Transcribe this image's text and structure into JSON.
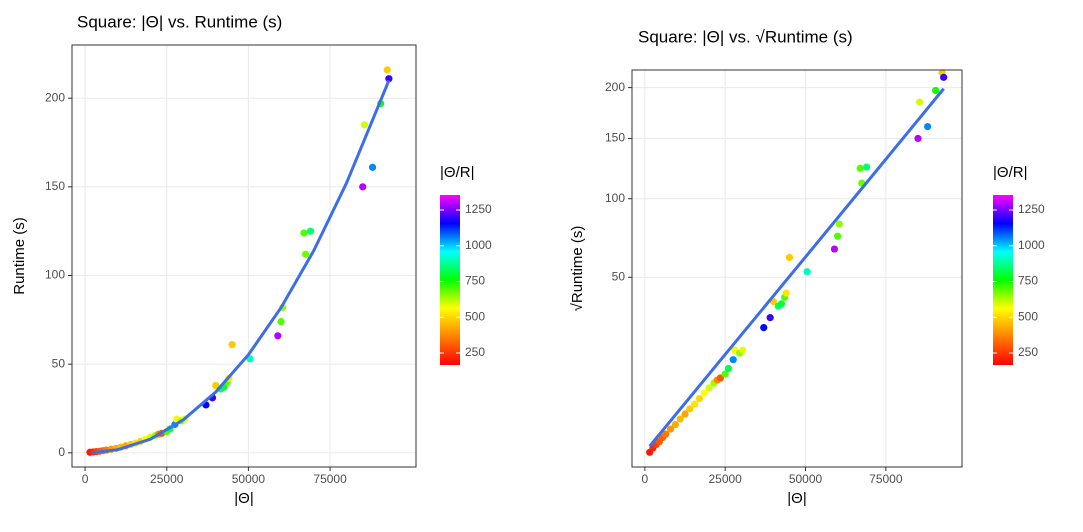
{
  "chart_data": [
    {
      "type": "scatter",
      "title": "Square: |Θ| vs. Runtime (s)",
      "xlabel": "|Θ|",
      "ylabel": "Runtime (s)",
      "xlim": [
        -4000,
        101300
      ],
      "xticks": [
        0,
        25000,
        50000,
        75000
      ],
      "ylim": [
        -8,
        230
      ],
      "yticks": [
        0,
        50,
        100,
        150,
        200
      ],
      "yscale": "linear",
      "grid": true,
      "x": [
        1500,
        2500,
        3500,
        4500,
        5500,
        6500,
        8000,
        9500,
        11000,
        12500,
        14000,
        15500,
        17000,
        18500,
        20000,
        21500,
        22500,
        23500,
        25000,
        26000,
        27500,
        28000,
        29500,
        30500,
        37000,
        39000,
        40000,
        41500,
        42500,
        43500,
        44000,
        45000,
        50500,
        59000,
        60000,
        60500,
        67000,
        67500,
        69000,
        85000,
        85500,
        88000,
        90500,
        92500,
        93000
      ],
      "values": [
        0.3,
        0.5,
        0.7,
        0.9,
        1.2,
        1.5,
        2.0,
        2.5,
        3.2,
        3.9,
        4.7,
        5.5,
        6.5,
        7.6,
        8.7,
        9.8,
        10.5,
        11,
        12,
        13.5,
        16,
        19,
        18,
        19,
        27,
        31,
        38,
        36,
        37,
        40,
        42,
        61,
        53,
        66,
        74,
        82,
        124,
        112,
        125,
        150,
        185,
        161,
        197,
        216,
        211
      ],
      "color_values": [
        200,
        220,
        260,
        300,
        320,
        350,
        400,
        430,
        450,
        420,
        480,
        520,
        500,
        560,
        600,
        640,
        380,
        300,
        700,
        820,
        1050,
        550,
        650,
        580,
        1150,
        1200,
        480,
        850,
        800,
        700,
        520,
        480,
        900,
        1300,
        700,
        650,
        700,
        680,
        850,
        1300,
        600,
        1050,
        750,
        480,
        1200
      ],
      "fit": {
        "color": "#3b6ee8",
        "x": [
          2000,
          10000,
          20000,
          30000,
          40000,
          50000,
          60000,
          70000,
          80000,
          93000
        ],
        "values": [
          0.05,
          1.75,
          7.7,
          18.5,
          34.3,
          55.3,
          81.9,
          114,
          152,
          210
        ]
      },
      "colorbar": {
        "title": "|Θ/R|",
        "lim": [
          166,
          1355
        ],
        "ticks": [
          250,
          500,
          750,
          1000,
          1250
        ],
        "colors": [
          "#ff0000",
          "#ff8000",
          "#ffff00",
          "#00ff00",
          "#00ffff",
          "#0000ff",
          "#ff00ff"
        ]
      }
    },
    {
      "type": "scatter",
      "title": "Square: |Θ| vs. √Runtime (s)",
      "xlabel": "|Θ|",
      "ylabel": "√Runtime (s)",
      "xlim": [
        -4000,
        98700
      ],
      "xticks": [
        0,
        25000,
        50000,
        75000
      ],
      "ylim": [
        0,
        219
      ],
      "yticks": [
        50,
        100,
        150,
        200
      ],
      "yscale": "sqrt",
      "grid": true,
      "x": [
        1500,
        2500,
        3500,
        4500,
        5500,
        6500,
        8000,
        9500,
        11000,
        12500,
        14000,
        15500,
        17000,
        18500,
        20000,
        21500,
        22500,
        23500,
        25000,
        26000,
        27500,
        28000,
        29500,
        30500,
        37000,
        39000,
        40000,
        41500,
        42500,
        43500,
        44000,
        45000,
        50500,
        59000,
        60000,
        60500,
        67000,
        67500,
        69000,
        85000,
        85500,
        88000,
        90500,
        92500,
        93000
      ],
      "values": [
        0.3,
        0.5,
        0.7,
        0.9,
        1.2,
        1.5,
        2.0,
        2.5,
        3.2,
        3.9,
        4.7,
        5.5,
        6.5,
        7.6,
        8.7,
        9.8,
        10.5,
        11,
        12,
        13.5,
        16,
        19,
        18,
        19,
        27,
        31,
        38,
        36,
        37,
        40,
        42,
        61,
        53,
        66,
        74,
        82,
        124,
        112,
        125,
        150,
        185,
        161,
        197,
        216,
        211
      ],
      "color_values": [
        200,
        220,
        260,
        300,
        320,
        350,
        400,
        430,
        450,
        420,
        480,
        520,
        500,
        560,
        600,
        640,
        380,
        300,
        700,
        820,
        1050,
        550,
        650,
        580,
        1150,
        1200,
        480,
        850,
        800,
        700,
        520,
        480,
        900,
        1300,
        700,
        650,
        700,
        680,
        850,
        1300,
        600,
        1050,
        750,
        480,
        1200
      ],
      "fit": {
        "color": "#3b6ee8",
        "x": [
          1500,
          25000,
          50000,
          75000,
          93000
        ],
        "values": [
          0.6,
          17.6,
          61.3,
          131.6,
          198.8
        ]
      },
      "colorbar": {
        "title": "|Θ/R|",
        "lim": [
          166,
          1355
        ],
        "ticks": [
          250,
          500,
          750,
          1000,
          1250
        ],
        "colors": [
          "#ff0000",
          "#ff8000",
          "#ffff00",
          "#00ff00",
          "#00ffff",
          "#0000ff",
          "#ff00ff"
        ]
      }
    }
  ]
}
